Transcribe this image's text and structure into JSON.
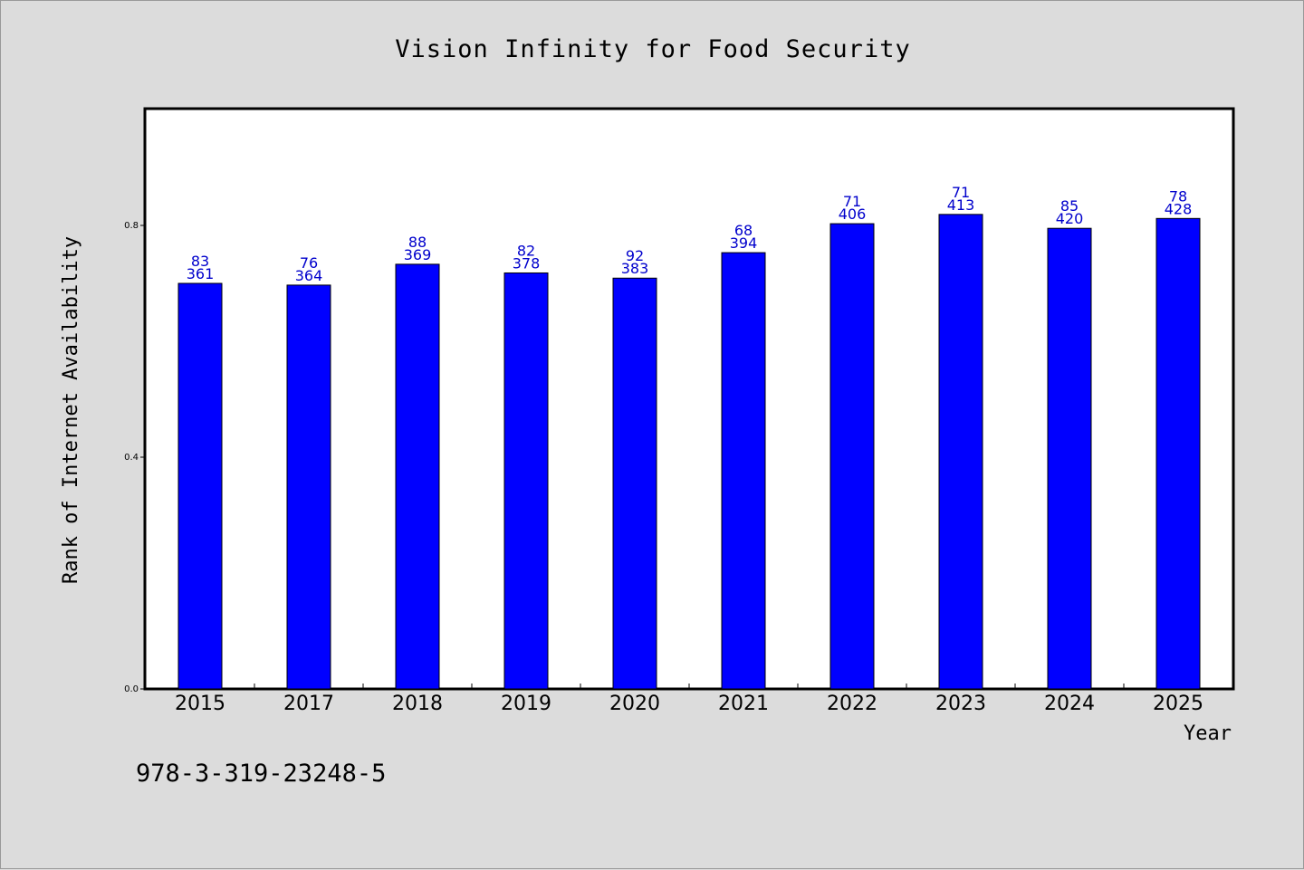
{
  "chart_data": {
    "type": "bar",
    "title": "Vision Infinity for Food Security",
    "xlabel": "Year",
    "ylabel": "Rank of Internet Availability",
    "categories": [
      "2015",
      "2017",
      "2018",
      "2019",
      "2020",
      "2021",
      "2022",
      "2023",
      "2024",
      "2025"
    ],
    "values": [
      0.7,
      0.697,
      0.733,
      0.718,
      0.709,
      0.753,
      0.803,
      0.819,
      0.795,
      0.812
    ],
    "data_labels_top": [
      "83",
      "76",
      "88",
      "82",
      "92",
      "68",
      "71",
      "71",
      "85",
      "78"
    ],
    "data_labels_bottom": [
      "361",
      "364",
      "369",
      "378",
      "383",
      "394",
      "406",
      "413",
      "420",
      "428"
    ],
    "ylim": [
      0,
      1.0
    ],
    "yticks": [
      0.0,
      0.4,
      0.8
    ],
    "ytick_labels": [
      "0.0",
      "0.4",
      "0.8"
    ],
    "grid": false,
    "bar_color": "#0000ff",
    "label_color": "#0000cc"
  },
  "footer": {
    "isbn": "978-3-319-23248-5"
  }
}
